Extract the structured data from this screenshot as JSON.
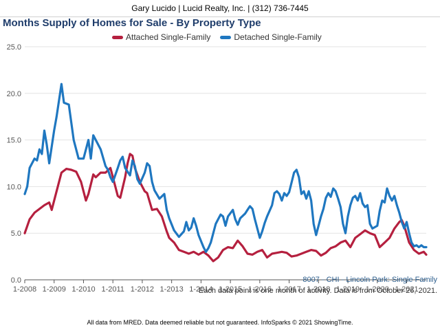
{
  "banner": {
    "text": "Gary Lucido | Lucid Realty, Inc. | (312) 736-7445"
  },
  "chart_data": {
    "type": "line",
    "title": "Months Supply of Homes for Sale - By Property Type",
    "xlabel": "",
    "ylabel": "",
    "ylim": [
      0,
      25
    ],
    "y_ticks": [
      "0.0",
      "5.0",
      "10.0",
      "15.0",
      "20.0",
      "25.0"
    ],
    "x_ticks": [
      "1-2008",
      "1-2009",
      "1-2010",
      "1-2011",
      "1-2012",
      "1-2013",
      "1-2014",
      "1-2015",
      "1-2016",
      "1-2017",
      "1-2018",
      "1-2019",
      "1-2020",
      "1-2021"
    ],
    "x_range": [
      "2008-01",
      "2021-09"
    ],
    "grid": true,
    "legend_position": "top",
    "series": [
      {
        "name": "Attached Single-Family",
        "color": "#b5203f",
        "points": [
          [
            "2008-01",
            5.0
          ],
          [
            "2008-03",
            6.5
          ],
          [
            "2008-05",
            7.2
          ],
          [
            "2008-07",
            7.6
          ],
          [
            "2008-09",
            8.0
          ],
          [
            "2008-11",
            8.3
          ],
          [
            "2008-12",
            7.5
          ],
          [
            "2009-02",
            9.5
          ],
          [
            "2009-04",
            11.5
          ],
          [
            "2009-06",
            11.9
          ],
          [
            "2009-08",
            11.8
          ],
          [
            "2009-10",
            11.6
          ],
          [
            "2009-12",
            10.5
          ],
          [
            "2010-02",
            8.5
          ],
          [
            "2010-03",
            9.2
          ],
          [
            "2010-05",
            11.3
          ],
          [
            "2010-06",
            11.0
          ],
          [
            "2010-08",
            11.5
          ],
          [
            "2010-10",
            11.5
          ],
          [
            "2010-12",
            12.0
          ],
          [
            "2011-01",
            11.0
          ],
          [
            "2011-03",
            9.0
          ],
          [
            "2011-04",
            8.8
          ],
          [
            "2011-06",
            11.0
          ],
          [
            "2011-07",
            12.5
          ],
          [
            "2011-08",
            13.5
          ],
          [
            "2011-09",
            13.3
          ],
          [
            "2011-10",
            12.0
          ],
          [
            "2011-12",
            10.5
          ],
          [
            "2012-02",
            9.5
          ],
          [
            "2012-03",
            9.3
          ],
          [
            "2012-05",
            7.5
          ],
          [
            "2012-07",
            7.6
          ],
          [
            "2012-09",
            6.8
          ],
          [
            "2012-11",
            5.2
          ],
          [
            "2012-12",
            4.5
          ],
          [
            "2013-02",
            4.0
          ],
          [
            "2013-04",
            3.2
          ],
          [
            "2013-06",
            3.0
          ],
          [
            "2013-08",
            2.8
          ],
          [
            "2013-10",
            3.0
          ],
          [
            "2013-12",
            2.7
          ],
          [
            "2014-02",
            3.0
          ],
          [
            "2014-04",
            2.6
          ],
          [
            "2014-06",
            2.0
          ],
          [
            "2014-08",
            2.4
          ],
          [
            "2014-10",
            3.2
          ],
          [
            "2014-12",
            3.5
          ],
          [
            "2015-02",
            3.4
          ],
          [
            "2015-04",
            4.2
          ],
          [
            "2015-06",
            3.6
          ],
          [
            "2015-08",
            2.8
          ],
          [
            "2015-10",
            2.7
          ],
          [
            "2015-12",
            3.0
          ],
          [
            "2016-02",
            3.2
          ],
          [
            "2016-04",
            2.4
          ],
          [
            "2016-06",
            2.8
          ],
          [
            "2016-08",
            2.9
          ],
          [
            "2016-10",
            3.0
          ],
          [
            "2016-12",
            2.9
          ],
          [
            "2017-02",
            2.5
          ],
          [
            "2017-04",
            2.6
          ],
          [
            "2017-06",
            2.8
          ],
          [
            "2017-08",
            3.0
          ],
          [
            "2017-10",
            3.2
          ],
          [
            "2017-12",
            3.1
          ],
          [
            "2018-02",
            2.6
          ],
          [
            "2018-04",
            2.9
          ],
          [
            "2018-06",
            3.4
          ],
          [
            "2018-08",
            3.6
          ],
          [
            "2018-10",
            4.0
          ],
          [
            "2018-12",
            4.2
          ],
          [
            "2019-02",
            3.5
          ],
          [
            "2019-04",
            4.5
          ],
          [
            "2019-06",
            4.9
          ],
          [
            "2019-08",
            5.3
          ],
          [
            "2019-10",
            5.0
          ],
          [
            "2019-12",
            4.8
          ],
          [
            "2020-02",
            3.5
          ],
          [
            "2020-04",
            4.0
          ],
          [
            "2020-06",
            4.5
          ],
          [
            "2020-08",
            5.5
          ],
          [
            "2020-10",
            6.2
          ],
          [
            "2020-11",
            6.4
          ],
          [
            "2020-12",
            5.8
          ],
          [
            "2021-02",
            4.0
          ],
          [
            "2021-04",
            3.2
          ],
          [
            "2021-06",
            2.8
          ],
          [
            "2021-08",
            3.0
          ],
          [
            "2021-09",
            2.7
          ]
        ]
      },
      {
        "name": "Detached Single-Family",
        "color": "#1f77c0",
        "points": [
          [
            "2008-01",
            9.2
          ],
          [
            "2008-02",
            10.0
          ],
          [
            "2008-03",
            12.0
          ],
          [
            "2008-05",
            13.0
          ],
          [
            "2008-06",
            12.8
          ],
          [
            "2008-07",
            14.0
          ],
          [
            "2008-08",
            13.5
          ],
          [
            "2008-09",
            16.0
          ],
          [
            "2008-10",
            14.5
          ],
          [
            "2008-11",
            12.5
          ],
          [
            "2009-01",
            16.0
          ],
          [
            "2009-02",
            17.5
          ],
          [
            "2009-04",
            21.0
          ],
          [
            "2009-05",
            19.0
          ],
          [
            "2009-07",
            18.8
          ],
          [
            "2009-09",
            15.0
          ],
          [
            "2009-11",
            13.0
          ],
          [
            "2010-01",
            13.0
          ],
          [
            "2010-03",
            15.0
          ],
          [
            "2010-04",
            13.0
          ],
          [
            "2010-05",
            15.5
          ],
          [
            "2010-06",
            15.0
          ],
          [
            "2010-08",
            14.0
          ],
          [
            "2010-10",
            12.2
          ],
          [
            "2010-11",
            11.8
          ],
          [
            "2010-12",
            11.0
          ],
          [
            "2011-01",
            10.5
          ],
          [
            "2011-03",
            12.0
          ],
          [
            "2011-04",
            12.8
          ],
          [
            "2011-05",
            13.2
          ],
          [
            "2011-06",
            12.0
          ],
          [
            "2011-08",
            11.2
          ],
          [
            "2011-09",
            12.8
          ],
          [
            "2011-10",
            12.2
          ],
          [
            "2011-11",
            10.8
          ],
          [
            "2011-12",
            10.3
          ],
          [
            "2012-02",
            11.5
          ],
          [
            "2012-03",
            12.5
          ],
          [
            "2012-04",
            12.2
          ],
          [
            "2012-05",
            10.5
          ],
          [
            "2012-06",
            9.6
          ],
          [
            "2012-08",
            8.7
          ],
          [
            "2012-10",
            9.2
          ],
          [
            "2012-11",
            7.5
          ],
          [
            "2012-12",
            6.6
          ],
          [
            "2013-02",
            5.3
          ],
          [
            "2013-04",
            4.6
          ],
          [
            "2013-06",
            5.2
          ],
          [
            "2013-07",
            6.2
          ],
          [
            "2013-08",
            5.3
          ],
          [
            "2013-09",
            5.6
          ],
          [
            "2013-10",
            6.6
          ],
          [
            "2013-11",
            5.8
          ],
          [
            "2013-12",
            4.8
          ],
          [
            "2014-02",
            3.5
          ],
          [
            "2014-03",
            3.0
          ],
          [
            "2014-04",
            3.4
          ],
          [
            "2014-05",
            4.0
          ],
          [
            "2014-07",
            6.0
          ],
          [
            "2014-08",
            6.5
          ],
          [
            "2014-09",
            7.0
          ],
          [
            "2014-10",
            6.8
          ],
          [
            "2014-11",
            5.8
          ],
          [
            "2014-12",
            6.8
          ],
          [
            "2015-02",
            7.5
          ],
          [
            "2015-03",
            6.5
          ],
          [
            "2015-04",
            5.9
          ],
          [
            "2015-05",
            6.6
          ],
          [
            "2015-07",
            7.1
          ],
          [
            "2015-08",
            7.5
          ],
          [
            "2015-09",
            7.9
          ],
          [
            "2015-10",
            7.6
          ],
          [
            "2015-11",
            6.5
          ],
          [
            "2016-01",
            4.5
          ],
          [
            "2016-02",
            5.2
          ],
          [
            "2016-03",
            6.1
          ],
          [
            "2016-04",
            6.8
          ],
          [
            "2016-06",
            8.0
          ],
          [
            "2016-07",
            9.3
          ],
          [
            "2016-08",
            9.5
          ],
          [
            "2016-09",
            9.2
          ],
          [
            "2016-10",
            8.5
          ],
          [
            "2016-11",
            9.3
          ],
          [
            "2016-12",
            9.0
          ],
          [
            "2017-01",
            9.4
          ],
          [
            "2017-03",
            11.5
          ],
          [
            "2017-04",
            11.8
          ],
          [
            "2017-05",
            11.0
          ],
          [
            "2017-06",
            9.2
          ],
          [
            "2017-07",
            9.5
          ],
          [
            "2017-08",
            8.7
          ],
          [
            "2017-09",
            9.5
          ],
          [
            "2017-10",
            8.5
          ],
          [
            "2017-11",
            6.0
          ],
          [
            "2017-12",
            4.8
          ],
          [
            "2018-02",
            6.8
          ],
          [
            "2018-03",
            7.6
          ],
          [
            "2018-04",
            8.8
          ],
          [
            "2018-05",
            9.3
          ],
          [
            "2018-06",
            8.9
          ],
          [
            "2018-07",
            9.8
          ],
          [
            "2018-08",
            9.5
          ],
          [
            "2018-09",
            8.7
          ],
          [
            "2018-10",
            7.8
          ],
          [
            "2018-11",
            6.0
          ],
          [
            "2018-12",
            5.0
          ],
          [
            "2019-01",
            6.8
          ],
          [
            "2019-02",
            8.0
          ],
          [
            "2019-03",
            8.8
          ],
          [
            "2019-04",
            9.0
          ],
          [
            "2019-05",
            8.5
          ],
          [
            "2019-06",
            9.3
          ],
          [
            "2019-07",
            8.2
          ],
          [
            "2019-08",
            7.8
          ],
          [
            "2019-09",
            8.0
          ],
          [
            "2019-10",
            6.0
          ],
          [
            "2019-11",
            5.5
          ],
          [
            "2020-01",
            5.8
          ],
          [
            "2020-02",
            7.4
          ],
          [
            "2020-03",
            8.5
          ],
          [
            "2020-04",
            8.3
          ],
          [
            "2020-05",
            9.8
          ],
          [
            "2020-06",
            9.0
          ],
          [
            "2020-07",
            8.5
          ],
          [
            "2020-08",
            9.0
          ],
          [
            "2020-09",
            8.0
          ],
          [
            "2020-10",
            7.2
          ],
          [
            "2020-11",
            6.2
          ],
          [
            "2020-12",
            5.5
          ],
          [
            "2021-01",
            6.2
          ],
          [
            "2021-02",
            5.0
          ],
          [
            "2021-03",
            4.0
          ],
          [
            "2021-04",
            3.6
          ],
          [
            "2021-05",
            3.7
          ],
          [
            "2021-06",
            3.5
          ],
          [
            "2021-07",
            3.7
          ],
          [
            "2021-08",
            3.5
          ],
          [
            "2021-09",
            3.5
          ]
        ]
      }
    ]
  },
  "footer": {
    "area_label": "8007 - CHI - Lincoln Park: Single Family",
    "note": "Each data point is one month of activity. Data is from October 26, 2021.",
    "disclaimer": "All data from MRED. Data deemed reliable but not guaranteed. InfoSparks © 2021 ShowingTime."
  }
}
